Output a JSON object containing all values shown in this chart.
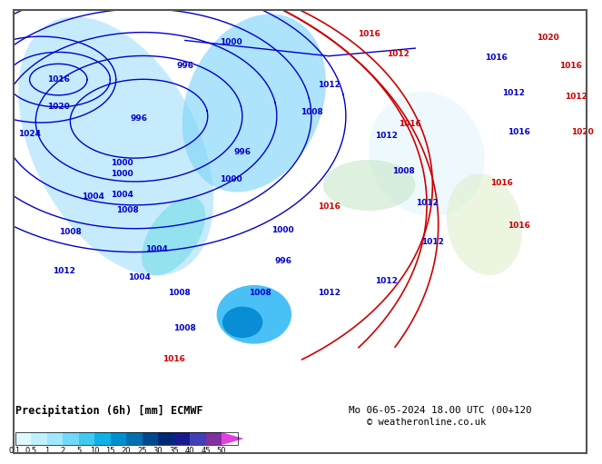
{
  "title_left": "Precipitation (6h) [mm] ECMWF",
  "title_right": "Mo 06-05-2024 18.00 UTC (00+120",
  "copyright": "© weatheronline.co.uk",
  "colorbar_labels": [
    "0.1",
    "0.5",
    "1",
    "2",
    "5",
    "10",
    "15",
    "20",
    "25",
    "30",
    "35",
    "40",
    "45",
    "50"
  ],
  "colorbar_colors": [
    "#e0f8ff",
    "#c0f0ff",
    "#a0e8ff",
    "#70d8f8",
    "#40c8f0",
    "#10b0e8",
    "#0090d0",
    "#0070b0",
    "#004890",
    "#002878",
    "#1a1a90",
    "#4040b8",
    "#8030a0",
    "#e040e0"
  ],
  "bg_color": "#ffffff",
  "map_bg": "#cce8f8",
  "blue_contour": "#0000cc",
  "red_contour": "#cc0000",
  "text_color": "#000000"
}
